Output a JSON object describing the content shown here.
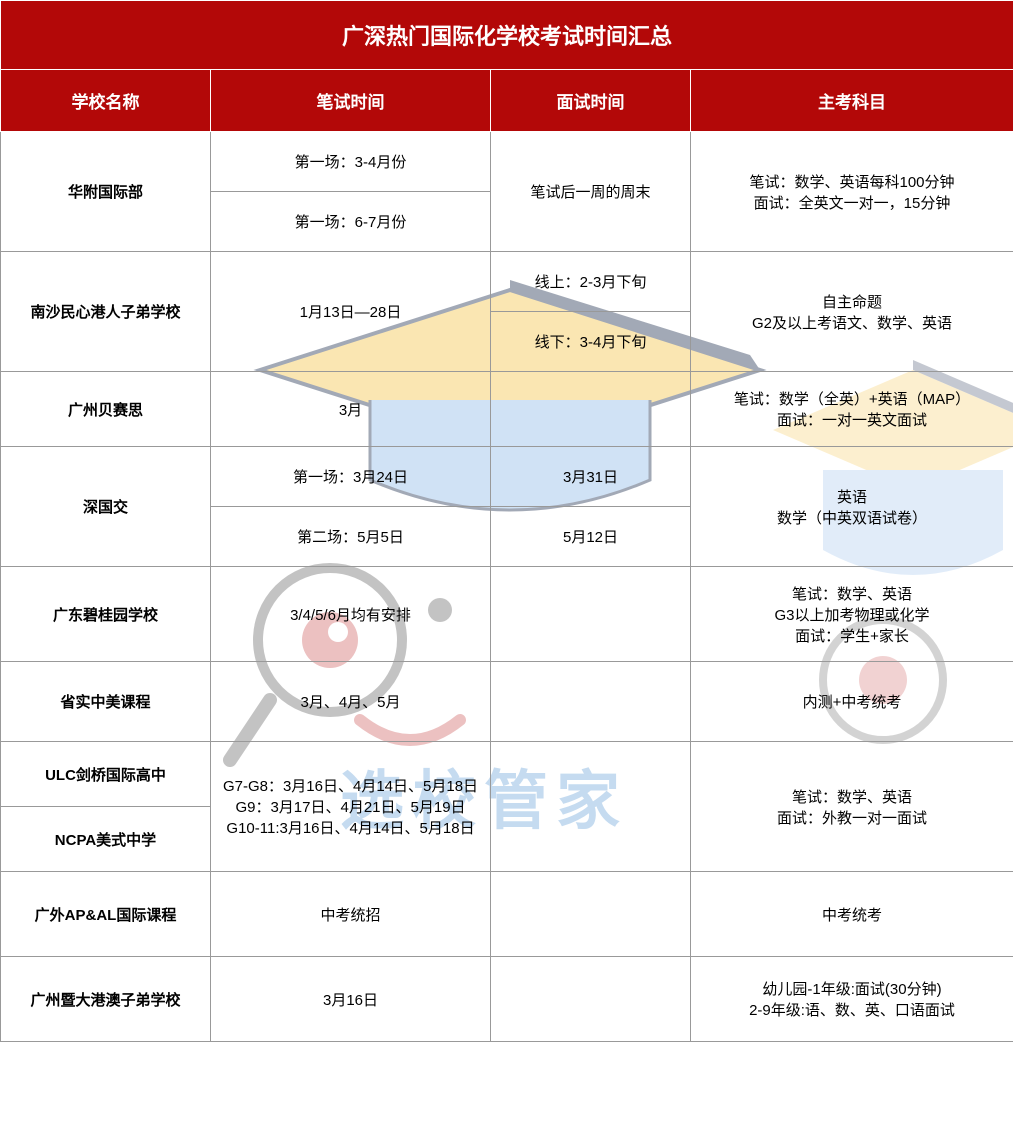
{
  "colors": {
    "header_bg": "#b30808",
    "header_text": "#ffffff",
    "border": "#999999",
    "text": "#000000",
    "watermark_text": "#5b9bd5"
  },
  "title": "广深热门国际化学校考试时间汇总",
  "headers": {
    "school": "学校名称",
    "written": "笔试时间",
    "interview": "面试时间",
    "subject": "主考科目"
  },
  "rows": {
    "huafu": {
      "school": "华附国际部",
      "written1": "第一场：3-4月份",
      "written2": "第一场：6-7月份",
      "interview": "笔试后一周的周末",
      "subject": "笔试：数学、英语每科100分钟\n面试：全英文一对一，15分钟"
    },
    "nansha": {
      "school": "南沙民心港人子弟学校",
      "written": "1月13日—28日",
      "interview1": "线上：2-3月下旬",
      "interview2": "线下：3-4月下旬",
      "subject": "自主命题\nG2及以上考语文、数学、英语"
    },
    "beisi": {
      "school": "广州贝赛思",
      "written": "3月",
      "interview": "",
      "subject": "笔试：数学（全英）+英语（MAP）\n面试：一对一英文面试"
    },
    "shenguojiao": {
      "school": "深国交",
      "written1": "第一场：3月24日",
      "written2": "第二场：5月5日",
      "interview1": "3月31日",
      "interview2": "5月12日",
      "subject": "英语\n数学（中英双语试卷）"
    },
    "biguiyuan": {
      "school": "广东碧桂园学校",
      "written": "3/4/5/6月均有安排",
      "interview": "",
      "subject": "笔试：数学、英语\nG3以上加考物理或化学\n面试：学生+家长"
    },
    "shengshi": {
      "school": "省实中美课程",
      "written": "3月、4月、5月",
      "interview": "",
      "subject": "内测+中考统考"
    },
    "ulc": {
      "school": "ULC剑桥国际高中",
      "written": "G7-G8：3月16日、4月14日、5月18日\nG9：3月17日、4月21日、5月19日\nG10-11:3月16日、4月14日、5月18日",
      "subject": "笔试：数学、英语\n面试：外教一对一面试"
    },
    "ncpa": {
      "school": "NCPA美式中学"
    },
    "guangwai": {
      "school": "广外AP&AL国际课程",
      "written": "中考统招",
      "interview": "",
      "subject": "中考统考"
    },
    "jida": {
      "school": "广州暨大港澳子弟学校",
      "written": "3月16日",
      "interview": "",
      "subject": "幼儿园-1年级:面试(30分钟)\n2-9年级:语、数、英、口语面试"
    }
  },
  "watermark": "选校管家"
}
